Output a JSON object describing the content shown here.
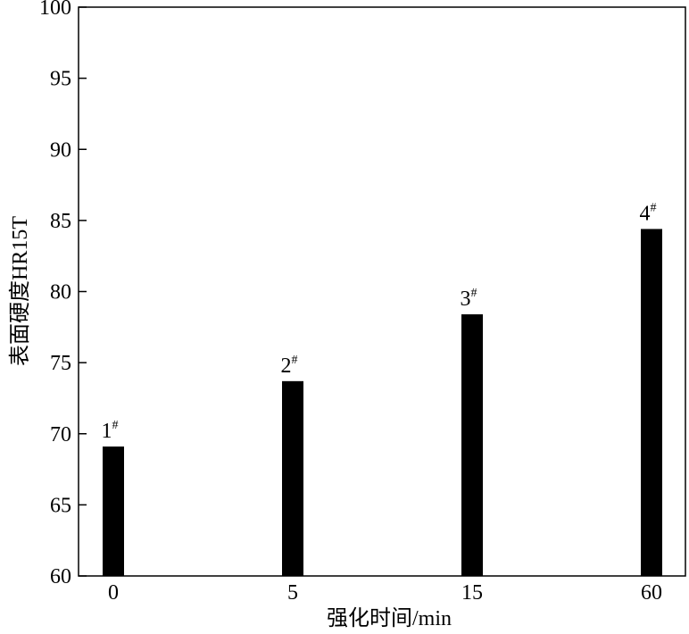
{
  "chart_data": {
    "type": "bar",
    "x_label": "强化时间/min",
    "y_label": "表面硬度HR15T",
    "categories": [
      "0",
      "5",
      "15",
      "60"
    ],
    "values": [
      69.1,
      73.7,
      78.4,
      84.4
    ],
    "bar_labels": [
      {
        "text": "1",
        "sup": "#"
      },
      {
        "text": "2",
        "sup": "#"
      },
      {
        "text": "3",
        "sup": "#"
      },
      {
        "text": "4",
        "sup": "#"
      }
    ],
    "color": "#000000",
    "ylim": [
      60,
      100
    ],
    "yticks": [
      60,
      65,
      70,
      75,
      80,
      85,
      90,
      95,
      100
    ],
    "grid": false
  }
}
